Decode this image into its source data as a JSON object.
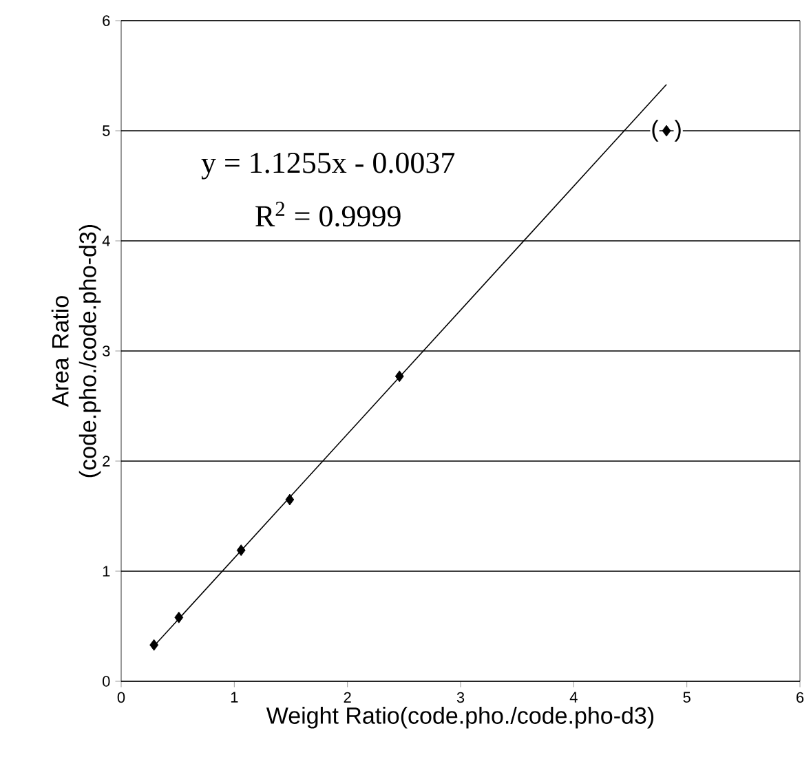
{
  "chart_data": {
    "type": "scatter",
    "xlabel": "Weight Ratio(code.pho./code.pho-d3)",
    "ylabel": "Area Ratio (code.pho./code.pho-d3)",
    "x": [
      0.29,
      0.51,
      1.06,
      1.49,
      2.46,
      4.82
    ],
    "series": [
      {
        "color": "#000000",
        "marker": "diamond",
        "values": [
          0.33,
          0.58,
          1.19,
          1.65,
          2.77,
          5.0
        ]
      },
      {
        "type": "line",
        "color": "#000000",
        "marker": "none",
        "line_style": "solid",
        "x": [
          0.29,
          4.82
        ],
        "values": [
          0.32,
          5.42
        ]
      }
    ],
    "annotations": [
      "y = 1.1255x - 0.0037",
      "R$^{2}$ = 0.9999",
      {
        "text": "(",
        "x": 4.82,
        "y": 5.0
      },
      {
        "text": ")",
        "x": 4.82,
        "y": 5.0
      }
    ],
    "xlim": [
      0,
      6
    ],
    "ylim": [
      0,
      6
    ],
    "xticks": [
      0,
      1,
      2,
      3,
      4,
      5,
      6
    ],
    "yticks": [
      0,
      1,
      2,
      3,
      4,
      5,
      6
    ],
    "grid": "y"
  }
}
